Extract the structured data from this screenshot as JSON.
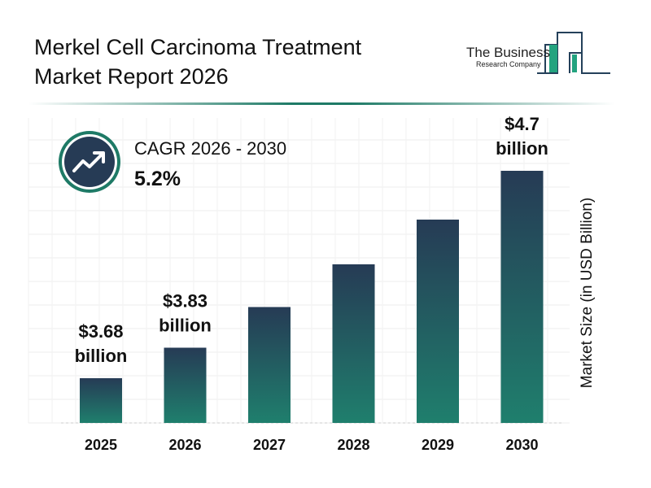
{
  "header": {
    "title": "Merkel Cell Carcinoma Treatment Market Report 2026"
  },
  "logo": {
    "line1": "The Business",
    "line2": "Research Company"
  },
  "cagr": {
    "label": "CAGR 2026 - 2030",
    "value": "5.2%",
    "icon": "trending-up-icon"
  },
  "colors": {
    "bar_top": "#263b55",
    "bar_bottom": "#1f7f6d",
    "accent": "#1e7a66"
  },
  "chart_data": {
    "type": "bar",
    "categories": [
      "2025",
      "2026",
      "2027",
      "2028",
      "2029",
      "2030"
    ],
    "values": [
      3.68,
      3.83,
      4.03,
      4.24,
      4.46,
      4.7
    ],
    "data_labels": [
      {
        "index": 0,
        "line1": "$3.68",
        "line2": "billion"
      },
      {
        "index": 1,
        "line1": "$3.83",
        "line2": "billion"
      },
      {
        "index": 5,
        "line1": "$4.7",
        "line2": "billion"
      }
    ],
    "title": "",
    "xlabel": "",
    "ylabel": "Market Size (in USD Billion)",
    "ylim": [
      3.46,
      4.72
    ],
    "grid": true
  }
}
